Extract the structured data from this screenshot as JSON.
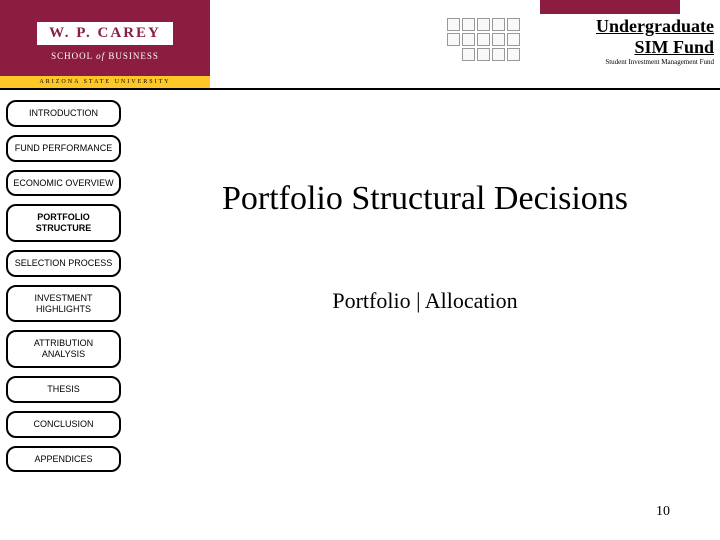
{
  "logo": {
    "top": "W. P. CAREY",
    "mid_a": "SCHOOL",
    "mid_of": "of",
    "mid_b": "BUSINESS",
    "bottom": "ARIZONA STATE UNIVERSITY"
  },
  "header": {
    "title_line1": "Undergraduate",
    "title_line2": "SIM Fund",
    "subtitle": "Student Investment Management Fund"
  },
  "nav": {
    "items": [
      {
        "label": "INTRODUCTION",
        "active": false
      },
      {
        "label": "FUND PERFORMANCE",
        "active": false
      },
      {
        "label": "ECONOMIC OVERVIEW",
        "active": false
      },
      {
        "label": "PORTFOLIO STRUCTURE",
        "active": true
      },
      {
        "label": "SELECTION PROCESS",
        "active": false
      },
      {
        "label": "INVESTMENT HIGHLIGHTS",
        "active": false
      },
      {
        "label": "ATTRIBUTION ANALYSIS",
        "active": false
      },
      {
        "label": "THESIS",
        "active": false
      },
      {
        "label": "CONCLUSION",
        "active": false
      },
      {
        "label": "APPENDICES",
        "active": false
      }
    ]
  },
  "content": {
    "title": "Portfolio Structural Decisions",
    "subtitle": "Portfolio | Allocation"
  },
  "page_number": "10",
  "colors": {
    "maroon": "#8c1d40",
    "gold": "#ffc627",
    "border": "#000000",
    "bg": "#ffffff"
  }
}
